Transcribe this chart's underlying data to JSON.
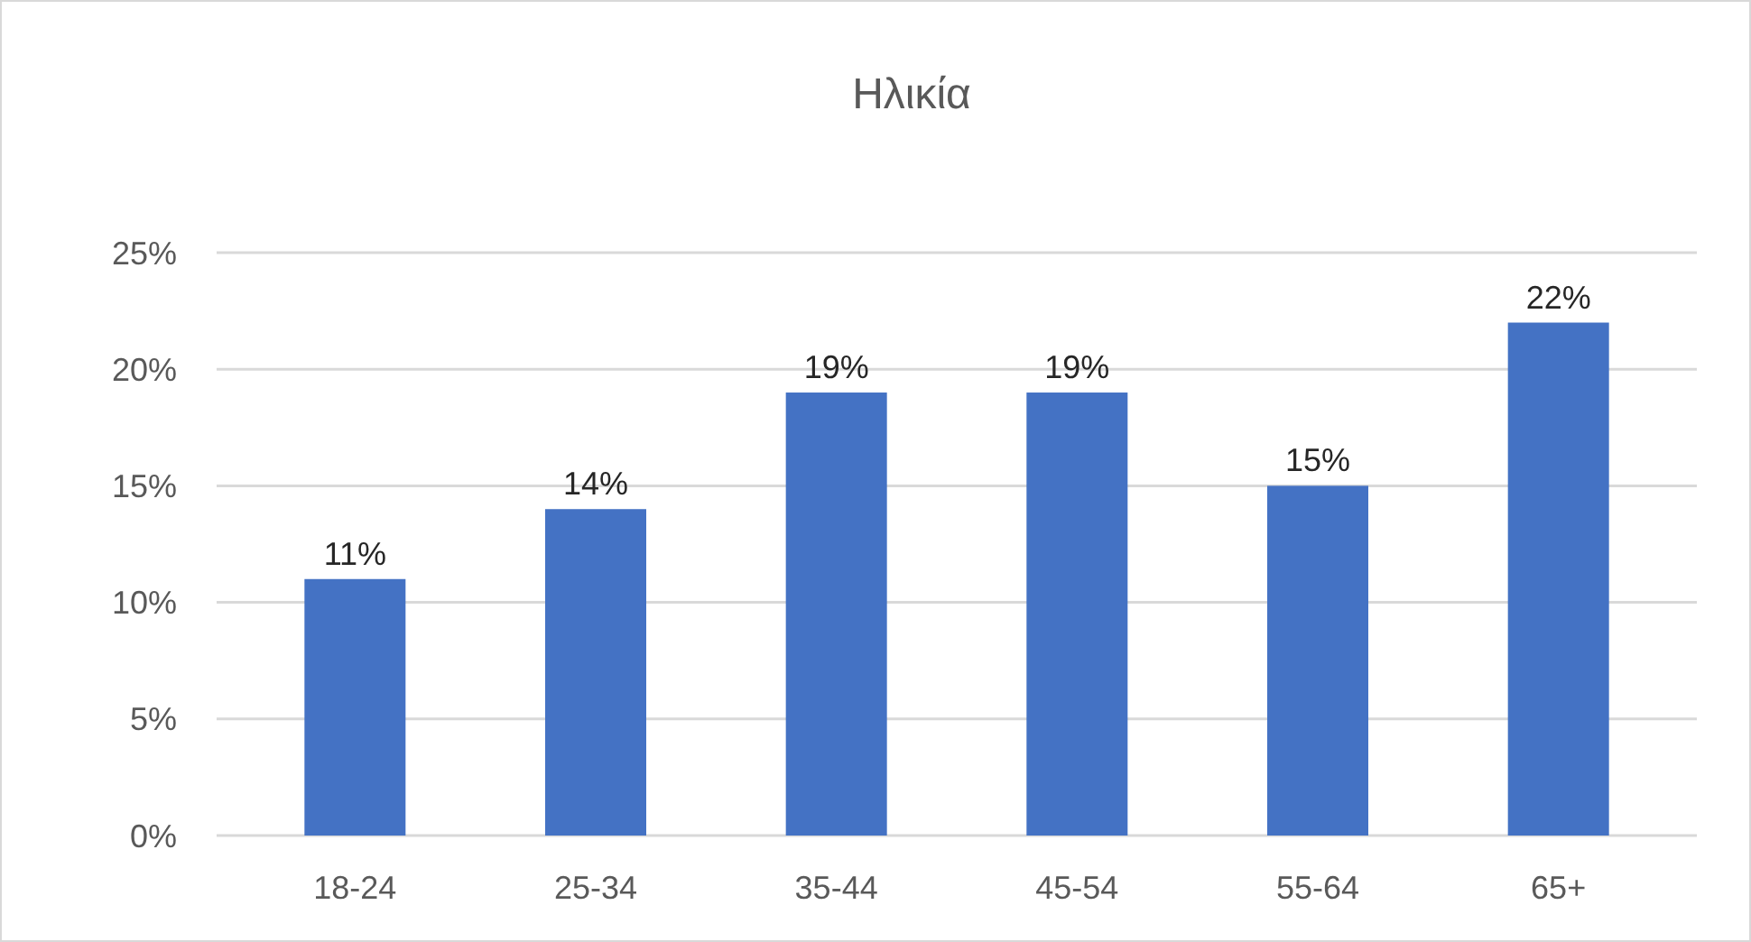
{
  "chart_data": {
    "type": "bar",
    "title": "Ηλικία",
    "categories": [
      "18-24",
      "25-34",
      "35-44",
      "45-54",
      "55-64",
      "65+"
    ],
    "values": [
      11,
      14,
      19,
      19,
      15,
      22
    ],
    "value_labels": [
      "11%",
      "14%",
      "19%",
      "19%",
      "15%",
      "22%"
    ],
    "color": "#4472c4",
    "ylim": [
      0,
      25
    ],
    "yticks": [
      {
        "value": 0,
        "label": "0%"
      },
      {
        "value": 5,
        "label": "5%"
      },
      {
        "value": 10,
        "label": "10%"
      },
      {
        "value": 15,
        "label": "15%"
      },
      {
        "value": 20,
        "label": "20%"
      },
      {
        "value": 25,
        "label": "25%"
      }
    ],
    "grid": "y"
  }
}
